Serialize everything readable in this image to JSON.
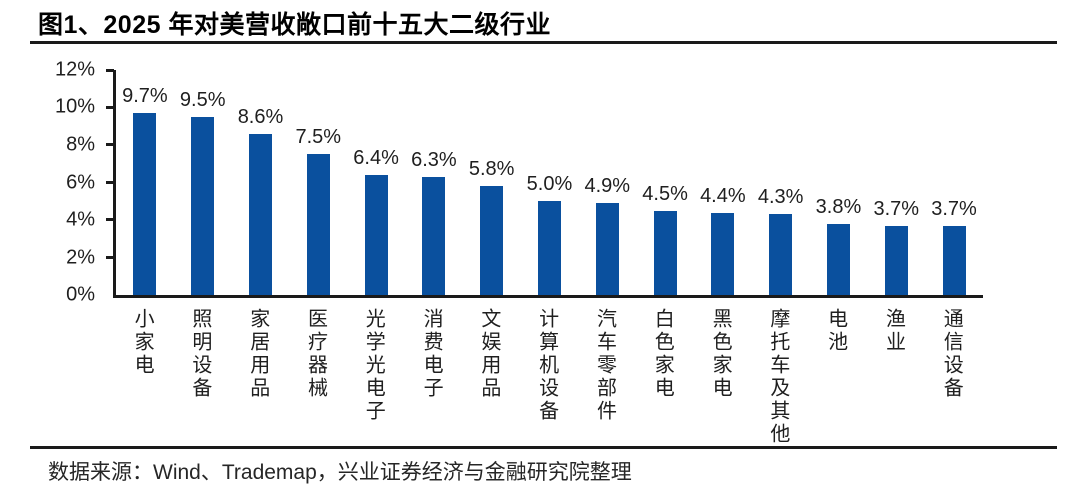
{
  "figure": {
    "title": "图1、2025 年对美营收敞口前十五大二级行业",
    "source_note": "数据来源：Wind、Trademap，兴业证券经济与金融研究院整理"
  },
  "colors": {
    "bar": "#0a509e",
    "axis": "#1a1a1a",
    "title_text": "#000000",
    "label_text": "#1f1f1f",
    "background": "#ffffff"
  },
  "chart_data": {
    "type": "bar",
    "title": "2025 年对美营收敞口前十五大二级行业",
    "categories": [
      "小家电",
      "照明设备",
      "家居用品",
      "医疗器械",
      "光学光电子",
      "消费电子",
      "文娱用品",
      "计算机设备",
      "汽车零部件",
      "白色家电",
      "黑色家电",
      "摩托车及其他",
      "电池",
      "渔业",
      "通信设备"
    ],
    "values": [
      9.7,
      9.5,
      8.6,
      7.5,
      6.4,
      6.3,
      5.8,
      5.0,
      4.9,
      4.5,
      4.4,
      4.3,
      3.8,
      3.7,
      3.7
    ],
    "value_labels": [
      "9.7%",
      "9.5%",
      "8.6%",
      "7.5%",
      "6.4%",
      "6.3%",
      "5.8%",
      "5.0%",
      "4.9%",
      "4.5%",
      "4.4%",
      "4.3%",
      "3.8%",
      "3.7%",
      "3.7%"
    ],
    "unit": "%",
    "ylim": [
      0,
      12
    ],
    "y_tick_step": 2,
    "y_tick_labels": [
      "12%",
      "10%",
      "8%",
      "6%",
      "4%",
      "2%",
      "0%"
    ],
    "xlabel": "",
    "ylabel": "",
    "grid": false,
    "legend": "none",
    "bar_color": "#0a509e"
  }
}
